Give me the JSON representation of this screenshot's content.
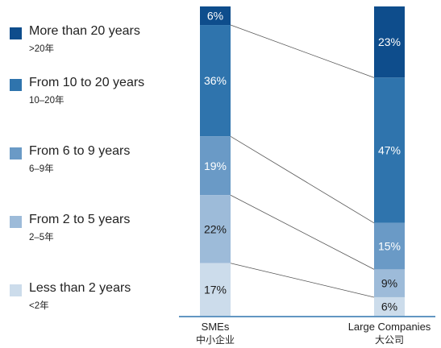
{
  "chart_data": {
    "type": "bar",
    "stacked": true,
    "percent": true,
    "categories": [
      {
        "en": "SMEs",
        "cn": "中小企业"
      },
      {
        "en": "Large Companies",
        "cn": "大公司"
      }
    ],
    "series": [
      {
        "name": "More than 20 years",
        "name_cn": ">20年",
        "color": "#0e4d8c",
        "label_color": "#ffffff",
        "values": [
          6,
          23
        ]
      },
      {
        "name": "From 10 to 20 years",
        "name_cn": "10–20年",
        "color": "#2f74ad",
        "label_color": "#ffffff",
        "values": [
          36,
          47
        ]
      },
      {
        "name": "From 6 to 9 years",
        "name_cn": "6–9年",
        "color": "#6a9ac6",
        "label_color": "#ffffff",
        "values": [
          19,
          15
        ]
      },
      {
        "name": "From 2 to 5 years",
        "name_cn": "2–5年",
        "color": "#9dbbd9",
        "label_color": "#1a1a1a",
        "values": [
          22,
          9
        ]
      },
      {
        "name": "Less than 2 years",
        "name_cn": "<2年",
        "color": "#ccdceb",
        "label_color": "#1a1a1a",
        "values": [
          17,
          6
        ]
      }
    ],
    "ylim": [
      0,
      100
    ],
    "axis_color": "#2f74ad",
    "connector_color": "#555555"
  }
}
